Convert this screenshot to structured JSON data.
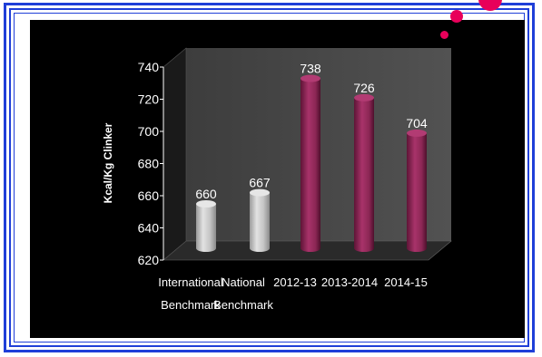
{
  "chart_data": {
    "type": "bar",
    "categories": [
      [
        "International",
        "Benchmark"
      ],
      [
        "National",
        "Benchmark"
      ],
      [
        "2012-13"
      ],
      [
        "2013-2014"
      ],
      [
        "2014-15"
      ]
    ],
    "values": [
      660,
      667,
      738,
      726,
      704
    ],
    "data_labels": [
      "660",
      "667",
      "738",
      "726",
      "704"
    ],
    "bar_colors": [
      "#c9c9c9",
      "#c9c9c9",
      "#8c2755",
      "#8c2755",
      "#8c2755"
    ],
    "ylabel": "Kcal/Kg Clinker",
    "ylim": [
      620,
      740
    ],
    "yticks": [
      620,
      640,
      660,
      680,
      700,
      720,
      740
    ],
    "grid": false,
    "background": "#000000",
    "text_color": "#ffffff"
  },
  "theme": {
    "border_color": "#1f3fd8",
    "accent_dots": "#e8005a"
  }
}
